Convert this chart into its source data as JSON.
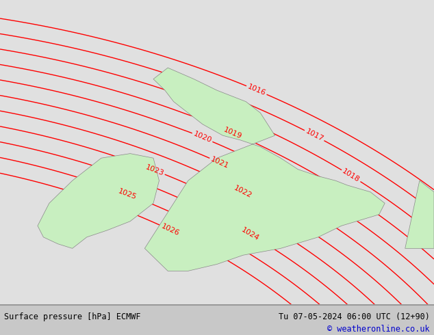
{
  "title_left": "Surface pressure [hPa] ECMWF",
  "title_right": "Tu 07-05-2024 06:00 UTC (12+90)",
  "copyright": "© weatheronline.co.uk",
  "bg_color": "#e0e0e0",
  "land_color": "#c8efc0",
  "border_color": "#888888",
  "contour_color": "#ff0000",
  "contour_linewidth": 1.0,
  "label_color": "#ff0000",
  "label_fontsize": 8,
  "footer_fontsize": 8.5,
  "footer_bg": "#c8c8c8",
  "contour_levels": [
    1016,
    1017,
    1018,
    1019,
    1020,
    1021,
    1022,
    1023,
    1024,
    1025,
    1026
  ],
  "lon_min": -11.5,
  "lon_max": 3.5,
  "lat_min": 48.5,
  "lat_max": 62.0
}
